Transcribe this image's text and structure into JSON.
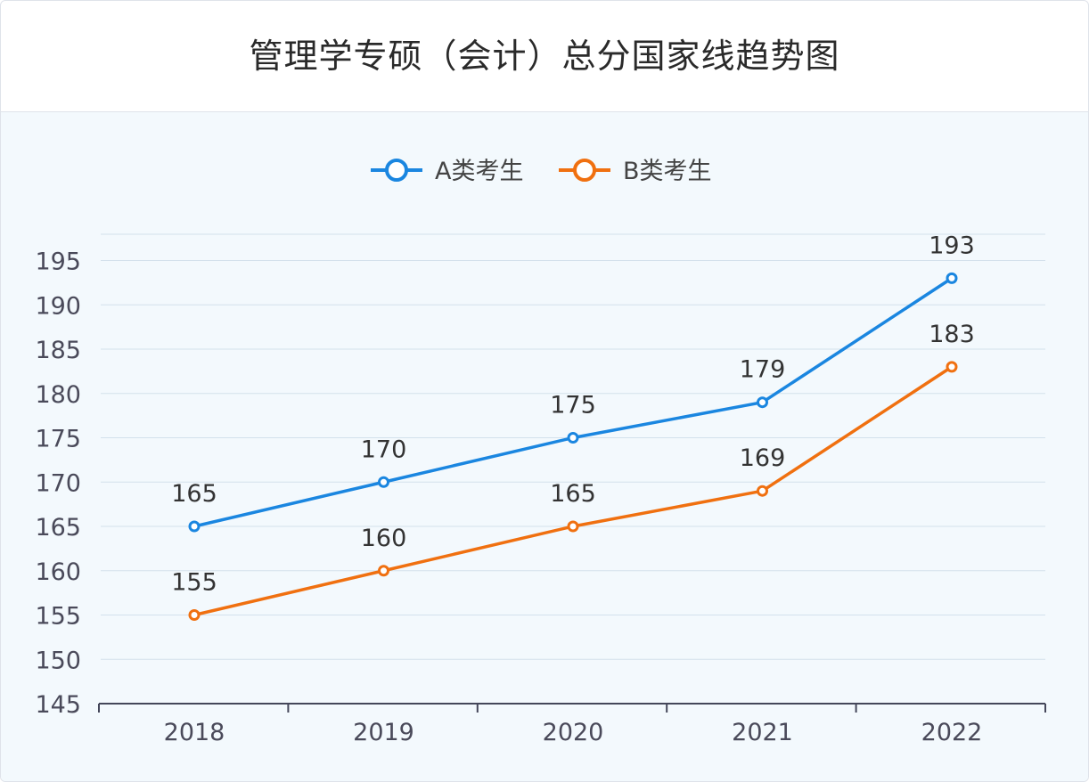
{
  "chart_data": {
    "type": "line",
    "title": "管理学专硕（会计）总分国家线趋势图",
    "categories": [
      "2018",
      "2019",
      "2020",
      "2021",
      "2022"
    ],
    "series": [
      {
        "name": "A类考生",
        "color": "#1a86e0",
        "values": [
          165,
          170,
          175,
          179,
          193
        ]
      },
      {
        "name": "B类考生",
        "color": "#f07010",
        "values": [
          155,
          160,
          165,
          169,
          183
        ]
      }
    ],
    "yticks": [
      "145",
      "150",
      "155",
      "160",
      "165",
      "170",
      "175",
      "180",
      "185",
      "190",
      "195"
    ],
    "ylim": [
      145,
      197
    ],
    "grid": true,
    "legend": "top-center",
    "xlabel": "",
    "ylabel": ""
  }
}
